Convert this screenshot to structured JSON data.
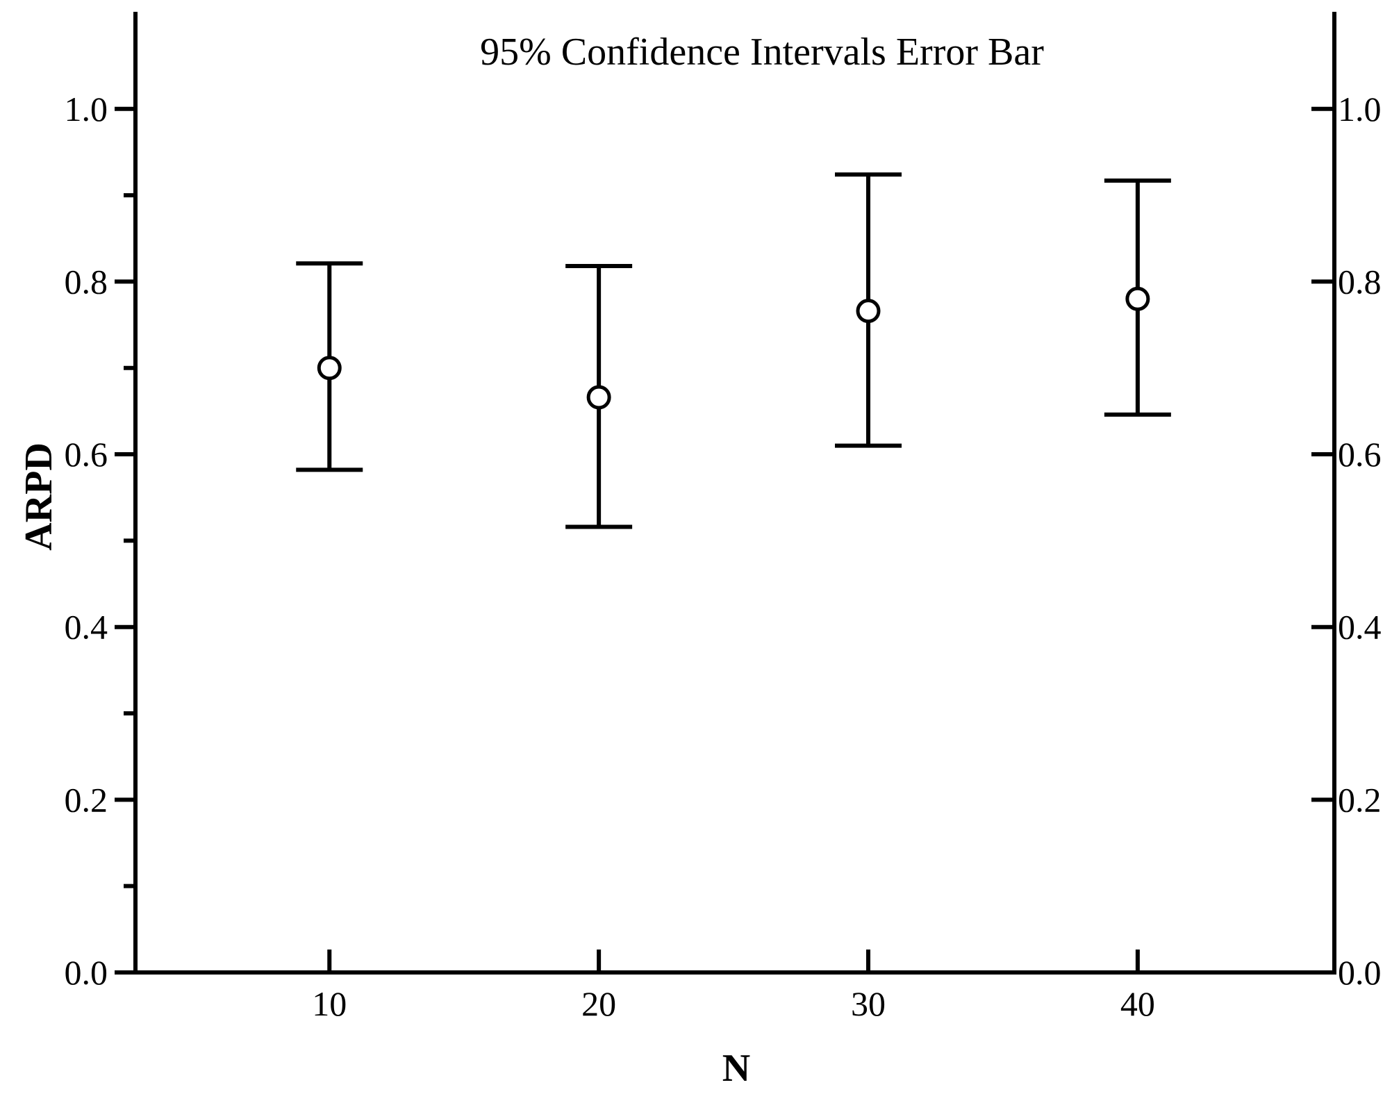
{
  "chart_data": {
    "type": "scatter",
    "title": "95% Confidence Intervals Error Bar",
    "xlabel": "N",
    "ylabel": "ARPD",
    "x": [
      10,
      20,
      30,
      40
    ],
    "series": [
      {
        "mean": [
          0.7,
          0.666,
          0.766,
          0.78
        ],
        "ci_lower": [
          0.582,
          0.516,
          0.61,
          0.646
        ],
        "ci_upper": [
          0.821,
          0.818,
          0.924,
          0.917
        ]
      }
    ],
    "xlim": [
      2.8,
      47.3
    ],
    "ylim": [
      0.0,
      1.11
    ],
    "x_ticks": [
      "10",
      "20",
      "30",
      "40"
    ],
    "y_ticks": [
      "0.0",
      "0.2",
      "0.4",
      "0.6",
      "0.8",
      "1.0"
    ],
    "right_y_ticks": [
      "0.0",
      "0.2",
      "0.4",
      "0.6",
      "0.8",
      "1.0"
    ],
    "grid": false,
    "color": "#000000"
  }
}
